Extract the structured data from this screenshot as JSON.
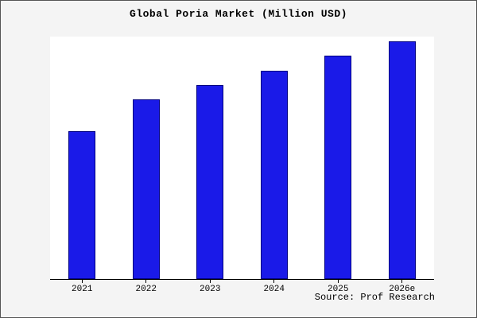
{
  "title": "Global Poria Market (Million USD)",
  "source": "Source: Prof Research",
  "colors": {
    "background": "#f4f4f4",
    "plot_background": "#ffffff",
    "bar_fill": "#1a1ae8",
    "bar_border": "#000080",
    "axis": "#000000"
  },
  "chart_data": {
    "type": "bar",
    "title": "Global Poria Market (Million USD)",
    "categories": [
      "2021",
      "2022",
      "2023",
      "2024",
      "2025",
      "2026e"
    ],
    "values": [
      61,
      74,
      80,
      86,
      92,
      98
    ],
    "xlabel": "",
    "ylabel": "",
    "ylim": [
      0,
      100
    ],
    "grid": false,
    "legend": false,
    "source": "Source: Prof Research"
  }
}
